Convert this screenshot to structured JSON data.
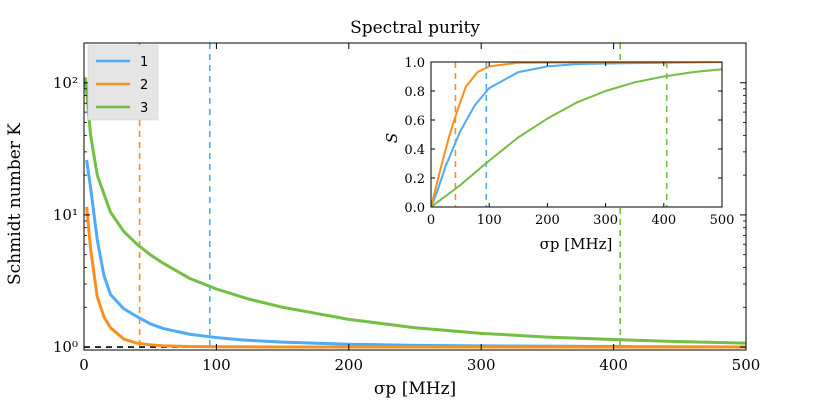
{
  "chart_data": [
    {
      "type": "line",
      "title": "Spectral purity",
      "xlabel": "σp [MHz]",
      "ylabel": "Schmidt number K",
      "xlim": [
        0,
        500
      ],
      "ylim": [
        0.95,
        200
      ],
      "yscale": "log",
      "xticks": [
        0,
        100,
        200,
        300,
        400,
        500
      ],
      "xtick_labels": [
        "0",
        "100",
        "200",
        "300",
        "400",
        "500"
      ],
      "yticks": [
        1,
        10,
        100
      ],
      "ytick_labels": [
        "10⁰",
        "10¹",
        "10²"
      ],
      "legend": {
        "position": "top-left",
        "entries": [
          "1",
          "2",
          "3"
        ]
      },
      "reference_lines": [
        {
          "kind": "horizontal",
          "value": 1,
          "color": "#000000",
          "style": "dashed"
        }
      ],
      "series": [
        {
          "name": "1",
          "color": "#4DABF7",
          "vline": 95,
          "x": [
            2,
            5,
            10,
            15,
            20,
            30,
            40,
            50,
            60,
            80,
            100,
            120,
            150,
            200,
            250,
            300,
            400,
            500
          ],
          "y": [
            26,
            16,
            6.5,
            3.5,
            2.5,
            1.95,
            1.7,
            1.5,
            1.38,
            1.25,
            1.18,
            1.13,
            1.09,
            1.05,
            1.03,
            1.02,
            1.01,
            1.0
          ]
        },
        {
          "name": "2",
          "color": "#F7901E",
          "vline": 42,
          "x": [
            2,
            5,
            10,
            15,
            20,
            30,
            40,
            50,
            60,
            80,
            100,
            150,
            200,
            300,
            500
          ],
          "y": [
            11.5,
            5.5,
            2.4,
            1.7,
            1.4,
            1.15,
            1.07,
            1.04,
            1.02,
            1.01,
            1.005,
            1.002,
            1.001,
            1.0,
            1.0
          ]
        },
        {
          "name": "3",
          "color": "#72BF44",
          "vline": 405,
          "x": [
            1,
            5,
            10,
            20,
            30,
            40,
            50,
            60,
            80,
            100,
            125,
            150,
            175,
            200,
            250,
            300,
            350,
            400,
            450,
            500
          ],
          "y": [
            110,
            40,
            20,
            10.5,
            7.5,
            6.0,
            5.0,
            4.3,
            3.3,
            2.75,
            2.3,
            2.0,
            1.8,
            1.62,
            1.4,
            1.27,
            1.19,
            1.14,
            1.1,
            1.07
          ]
        }
      ]
    },
    {
      "type": "line",
      "title": "",
      "xlabel": "σp [MHz]",
      "ylabel": "S",
      "xlim": [
        0,
        500
      ],
      "ylim": [
        0,
        1
      ],
      "xticks": [
        0,
        100,
        200,
        300,
        400,
        500
      ],
      "xtick_labels": [
        "0",
        "100",
        "200",
        "300",
        "400",
        "500"
      ],
      "yticks": [
        0,
        0.2,
        0.4,
        0.6,
        0.8,
        1.0
      ],
      "ytick_labels": [
        "0.0",
        "0.2",
        "0.4",
        "0.6",
        "0.8",
        "1.0"
      ],
      "series": [
        {
          "name": "1",
          "color": "#4DABF7",
          "vline": 95,
          "x": [
            0,
            10,
            25,
            50,
            75,
            100,
            150,
            200,
            250,
            300,
            400,
            500
          ],
          "y": [
            0,
            0.1,
            0.28,
            0.52,
            0.7,
            0.82,
            0.93,
            0.97,
            0.985,
            0.99,
            0.995,
            1.0
          ]
        },
        {
          "name": "2",
          "color": "#F7901E",
          "vline": 42,
          "x": [
            0,
            10,
            20,
            30,
            40,
            50,
            60,
            80,
            100,
            150,
            500
          ],
          "y": [
            0,
            0.16,
            0.32,
            0.47,
            0.6,
            0.72,
            0.83,
            0.93,
            0.97,
            0.995,
            1.0
          ]
        },
        {
          "name": "3",
          "color": "#72BF44",
          "vline": 405,
          "x": [
            0,
            50,
            100,
            150,
            200,
            250,
            300,
            350,
            400,
            450,
            500
          ],
          "y": [
            0,
            0.15,
            0.32,
            0.48,
            0.61,
            0.72,
            0.8,
            0.86,
            0.9,
            0.93,
            0.95
          ]
        }
      ]
    }
  ]
}
